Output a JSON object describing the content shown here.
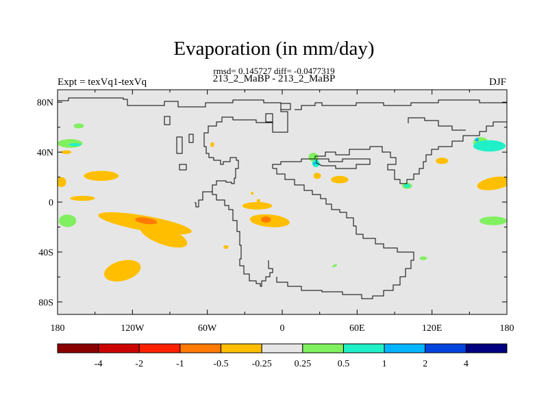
{
  "chart_data": {
    "type": "contour_map",
    "title": "Evaporation (in mm/day)",
    "stats_line": "rmsd= 0.145727 diff= -0.0477319",
    "case_line": "213_2_MaBP - 213_2_MaBP",
    "left_label": "Expt = texVq1-texVq",
    "right_label": "DJF",
    "x_ticks": [
      "180",
      "120W",
      "60W",
      "0",
      "60E",
      "120E",
      "180"
    ],
    "x_tick_values": [
      -180,
      -120,
      -60,
      0,
      60,
      120,
      180
    ],
    "y_ticks": [
      "80N",
      "40N",
      "0",
      "40S",
      "80S"
    ],
    "y_tick_values": [
      80,
      40,
      0,
      -40,
      -80
    ],
    "xlim": [
      -180,
      180
    ],
    "ylim": [
      -90,
      90
    ],
    "colorbar": {
      "labels": [
        "-4",
        "-2",
        "-1",
        "-0.5",
        "-0.25",
        "0.25",
        "0.5",
        "1",
        "2",
        "4"
      ],
      "colors": [
        "#8b0000",
        "#cc0000",
        "#ff2000",
        "#ff7a00",
        "#ffbf00",
        "#e6e6e6",
        "#80f060",
        "#20f0c8",
        "#00b4ff",
        "#0044e0",
        "#000080"
      ]
    },
    "background_color": "#e6e6e6",
    "regions": [
      {
        "level": "-0.25",
        "color": "#ffbf00",
        "lon": -110,
        "lat": -17,
        "rx": 38,
        "ry": 6,
        "rot": 10
      },
      {
        "level": "-0.25",
        "color": "#ffbf00",
        "lon": -95,
        "lat": -27,
        "rx": 20,
        "ry": 7,
        "rot": 20
      },
      {
        "level": "-0.5",
        "color": "#ff7a00",
        "lon": -109,
        "lat": -15,
        "rx": 9,
        "ry": 2.5,
        "rot": 8
      },
      {
        "level": "-0.25",
        "color": "#ffbf00",
        "lon": -128,
        "lat": -55,
        "rx": 15,
        "ry": 8,
        "rot": -15
      },
      {
        "level": "-0.25",
        "color": "#ffbf00",
        "lon": -145,
        "lat": 21,
        "rx": 14,
        "ry": 4,
        "rot": 0
      },
      {
        "level": "-0.25",
        "color": "#ffbf00",
        "lon": -160,
        "lat": 3,
        "rx": 10,
        "ry": 2,
        "rot": 0
      },
      {
        "level": "-0.25",
        "color": "#ffbf00",
        "lon": -173,
        "lat": 40,
        "rx": 4,
        "ry": 1.5,
        "rot": 0
      },
      {
        "level": "-0.25",
        "color": "#ffbf00",
        "lon": -20,
        "lat": -3,
        "rx": 12,
        "ry": 3,
        "rot": 0
      },
      {
        "level": "-0.25",
        "color": "#ffbf00",
        "lon": -10,
        "lat": -15,
        "rx": 16,
        "ry": 5,
        "rot": 5
      },
      {
        "level": "-0.5",
        "color": "#ff7a00",
        "lon": -13,
        "lat": -14,
        "rx": 4,
        "ry": 2.5,
        "rot": 0
      },
      {
        "level": "-0.25",
        "color": "#ffbf00",
        "lon": -19,
        "lat": 1,
        "rx": 1.5,
        "ry": 1.5,
        "rot": 0
      },
      {
        "level": "-0.25",
        "color": "#ffbf00",
        "lon": -24,
        "lat": 7,
        "rx": 1,
        "ry": 1.2,
        "rot": 0
      },
      {
        "level": "-0.25",
        "color": "#ffbf00",
        "lon": 46,
        "lat": 18,
        "rx": 7,
        "ry": 3,
        "rot": 0
      },
      {
        "level": "-0.25",
        "color": "#ffbf00",
        "lon": 28,
        "lat": 21,
        "rx": 3,
        "ry": 2.5,
        "rot": 0
      },
      {
        "level": "-0.25",
        "color": "#ffbf00",
        "lon": 128,
        "lat": 33,
        "rx": 5,
        "ry": 2.5,
        "rot": 0
      },
      {
        "level": "-0.25",
        "color": "#ffbf00",
        "lon": 170,
        "lat": 15,
        "rx": 14,
        "ry": 5,
        "rot": -10
      },
      {
        "level": "-0.25",
        "color": "#ffbf00",
        "lon": -177,
        "lat": 16,
        "rx": 4,
        "ry": 4,
        "rot": 0
      },
      {
        "level": "-0.25",
        "color": "#ffbf00",
        "lon": -56,
        "lat": 46,
        "rx": 1.5,
        "ry": 2,
        "rot": 0
      },
      {
        "level": "-0.25",
        "color": "#ffbf00",
        "lon": -45,
        "lat": -36,
        "rx": 2,
        "ry": 1.5,
        "rot": 0
      },
      {
        "level": "0.25",
        "color": "#80f060",
        "lon": -170,
        "lat": 47,
        "rx": 10,
        "ry": 3.5,
        "rot": 0
      },
      {
        "level": "0.25",
        "color": "#80f060",
        "lon": -163,
        "lat": 61,
        "rx": 4,
        "ry": 2,
        "rot": 0
      },
      {
        "level": "0.25",
        "color": "#80f060",
        "lon": -172,
        "lat": -15,
        "rx": 7,
        "ry": 5,
        "rot": 0
      },
      {
        "level": "0.25",
        "color": "#80f060",
        "lon": 169,
        "lat": -15,
        "rx": 11,
        "ry": 3.5,
        "rot": 0
      },
      {
        "level": "0.25",
        "color": "#80f060",
        "lon": 25,
        "lat": 36,
        "rx": 4,
        "ry": 3.5,
        "rot": 0
      },
      {
        "level": "0.25",
        "color": "#80f060",
        "lon": 113,
        "lat": -45,
        "rx": 3,
        "ry": 1.5,
        "rot": 0
      },
      {
        "level": "0.25",
        "color": "#80f060",
        "lon": 100,
        "lat": 13,
        "rx": 4,
        "ry": 2.5,
        "rot": 0
      },
      {
        "level": "0.25",
        "color": "#80f060",
        "lon": 159,
        "lat": 48,
        "rx": 6,
        "ry": 4,
        "rot": 0
      },
      {
        "level": "0.25",
        "color": "#80f060",
        "lon": 42,
        "lat": -51,
        "rx": 2,
        "ry": 1,
        "rot": -30
      },
      {
        "level": "0.5",
        "color": "#20f0c8",
        "lon": -166,
        "lat": 46,
        "rx": 5,
        "ry": 1.2,
        "rot": 0
      },
      {
        "level": "0.5",
        "color": "#20f0c8",
        "lon": 27,
        "lat": 31,
        "rx": 3,
        "ry": 3,
        "rot": 0
      },
      {
        "level": "0.5",
        "color": "#20f0c8",
        "lon": 100,
        "lat": 13,
        "rx": 2.5,
        "ry": 1.5,
        "rot": 0
      },
      {
        "level": "0.5",
        "color": "#20f0c8",
        "lon": 166,
        "lat": 45,
        "rx": 13,
        "ry": 4.5,
        "rot": 0
      },
      {
        "level": "1",
        "color": "#00b4ff",
        "lon": 156,
        "lat": 50,
        "rx": 1.5,
        "ry": 1.5,
        "rot": 0
      },
      {
        "level": "1",
        "color": "#00b4ff",
        "lon": 26,
        "lat": 31,
        "rx": 1,
        "ry": 1,
        "rot": 0
      }
    ]
  }
}
